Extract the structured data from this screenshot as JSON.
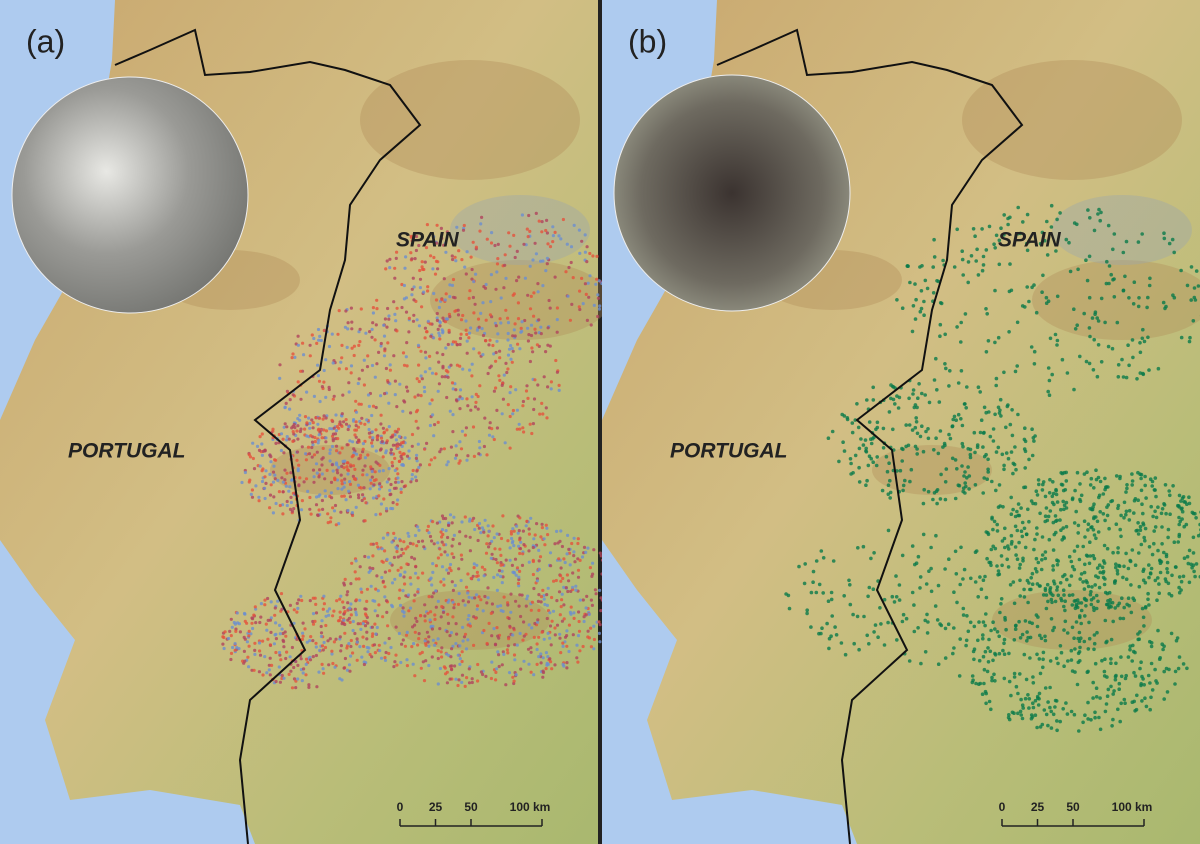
{
  "panels": [
    {
      "label": "(a)",
      "countries": [
        "SPAIN",
        "PORTUGAL"
      ],
      "scale_bar": {
        "ticks": [
          0,
          25,
          50,
          {
            "value": 100,
            "label": "100 km"
          }
        ]
      }
    },
    {
      "label": "(b)",
      "countries": [
        "SPAIN",
        "PORTUGAL"
      ],
      "scale_bar": {
        "ticks": [
          0,
          25,
          50,
          {
            "value": 100,
            "label": "100 km"
          }
        ]
      }
    }
  ]
}
